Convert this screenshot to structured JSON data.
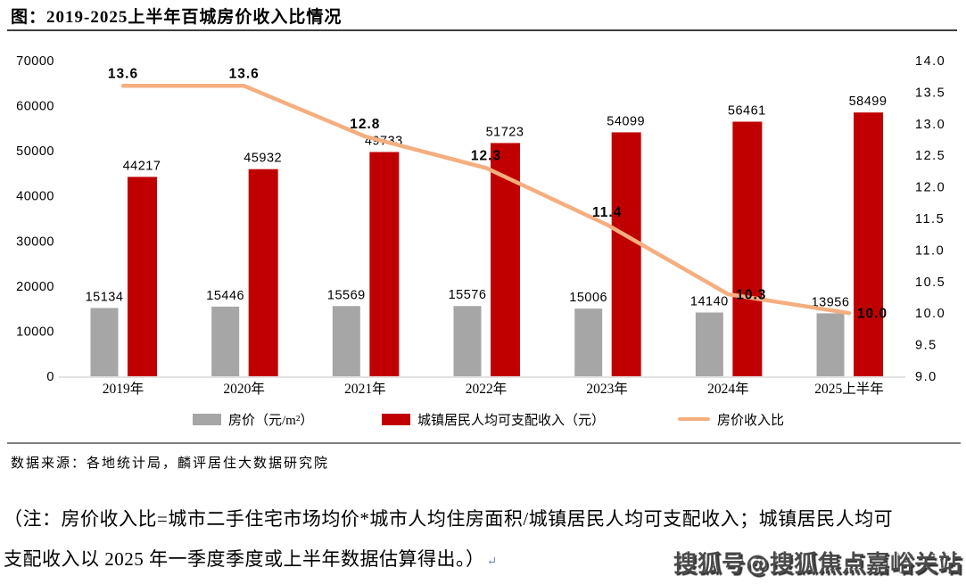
{
  "title": "图：2019-2025上半年百城房价收入比情况",
  "source": "数据来源：各地统计局，麟评居住大数据研究院",
  "note": {
    "line1": "（注：房价收入比=城市二手住宅市场均价*城市人均住房面积/城镇居民人均可支配收入；城镇居民人均可",
    "line2": "支配收入以 2025 年一季度季度或上半年数据估算得出。）",
    "paragraph_mark": "↵"
  },
  "watermark": "搜狐号@搜狐焦点嘉峪关站",
  "colors": {
    "price_bar": "#A6A6A6",
    "income_bar": "#C00000",
    "ratio_line": "#F5AE7F",
    "axis_line": "#D9D9D9",
    "text": "#000000"
  },
  "chart_data": {
    "type": "bar",
    "subtype": "grouped bars with secondary-axis line",
    "categories": [
      "2019年",
      "2020年",
      "2021年",
      "2022年",
      "2023年",
      "2024年",
      "2025上半年"
    ],
    "series": [
      {
        "name": "房价（元/m²）",
        "type": "bar",
        "axis": "left",
        "color": "#A6A6A6",
        "values": [
          15134,
          15446,
          15569,
          15576,
          15006,
          14140,
          13956
        ]
      },
      {
        "name": "城镇居民人均可支配收入（元）",
        "type": "bar",
        "axis": "left",
        "color": "#C00000",
        "values": [
          44217,
          45932,
          49733,
          51723,
          54099,
          56461,
          58499
        ]
      },
      {
        "name": "房价收入比",
        "type": "line",
        "axis": "right",
        "color": "#F5AE7F",
        "values": [
          13.6,
          13.6,
          12.8,
          12.3,
          11.4,
          10.3,
          10.0
        ],
        "labels": [
          "13.6",
          "13.6",
          "12.8",
          "12.3",
          "11.4",
          "10.3",
          "10.0"
        ]
      }
    ],
    "left_axis": {
      "min": 0,
      "max": 70000,
      "step": 10000,
      "tick_labels": [
        "0",
        "10000",
        "20000",
        "30000",
        "40000",
        "50000",
        "60000",
        "70000"
      ]
    },
    "right_axis": {
      "min": 9.0,
      "max": 14.0,
      "step": 0.5,
      "tick_labels": [
        "9.0",
        "9.5",
        "10.0",
        "10.5",
        "11.0",
        "11.5",
        "12.0",
        "12.5",
        "13.0",
        "13.5",
        "14.0"
      ]
    },
    "grid": false,
    "legend_position": "bottom",
    "title": "图：2019-2025上半年百城房价收入比情况"
  }
}
